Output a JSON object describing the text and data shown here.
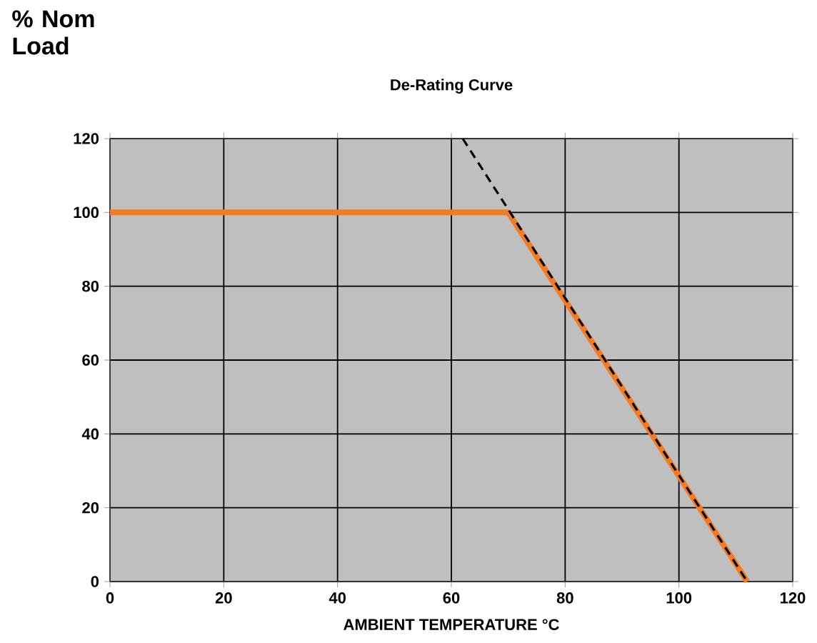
{
  "chart_data": {
    "type": "line",
    "title": "De-Rating Curve",
    "xlabel": "AMBIENT TEMPERATURE °C",
    "ylabel": "% Nom Load",
    "xlim": [
      0,
      120
    ],
    "ylim": [
      0,
      120
    ],
    "xticks": [
      0,
      20,
      40,
      60,
      80,
      100,
      120
    ],
    "yticks": [
      0,
      20,
      40,
      60,
      80,
      100,
      120
    ],
    "grid": true,
    "marker": "none",
    "series": [
      {
        "color": "#f47b20",
        "x": [
          0,
          70,
          112
        ],
        "values": [
          100,
          100,
          0
        ],
        "line_style": "solid"
      },
      {
        "color": "#000000",
        "x": [
          62,
          112
        ],
        "values": [
          120,
          0
        ],
        "line_style": "dashed"
      }
    ]
  }
}
